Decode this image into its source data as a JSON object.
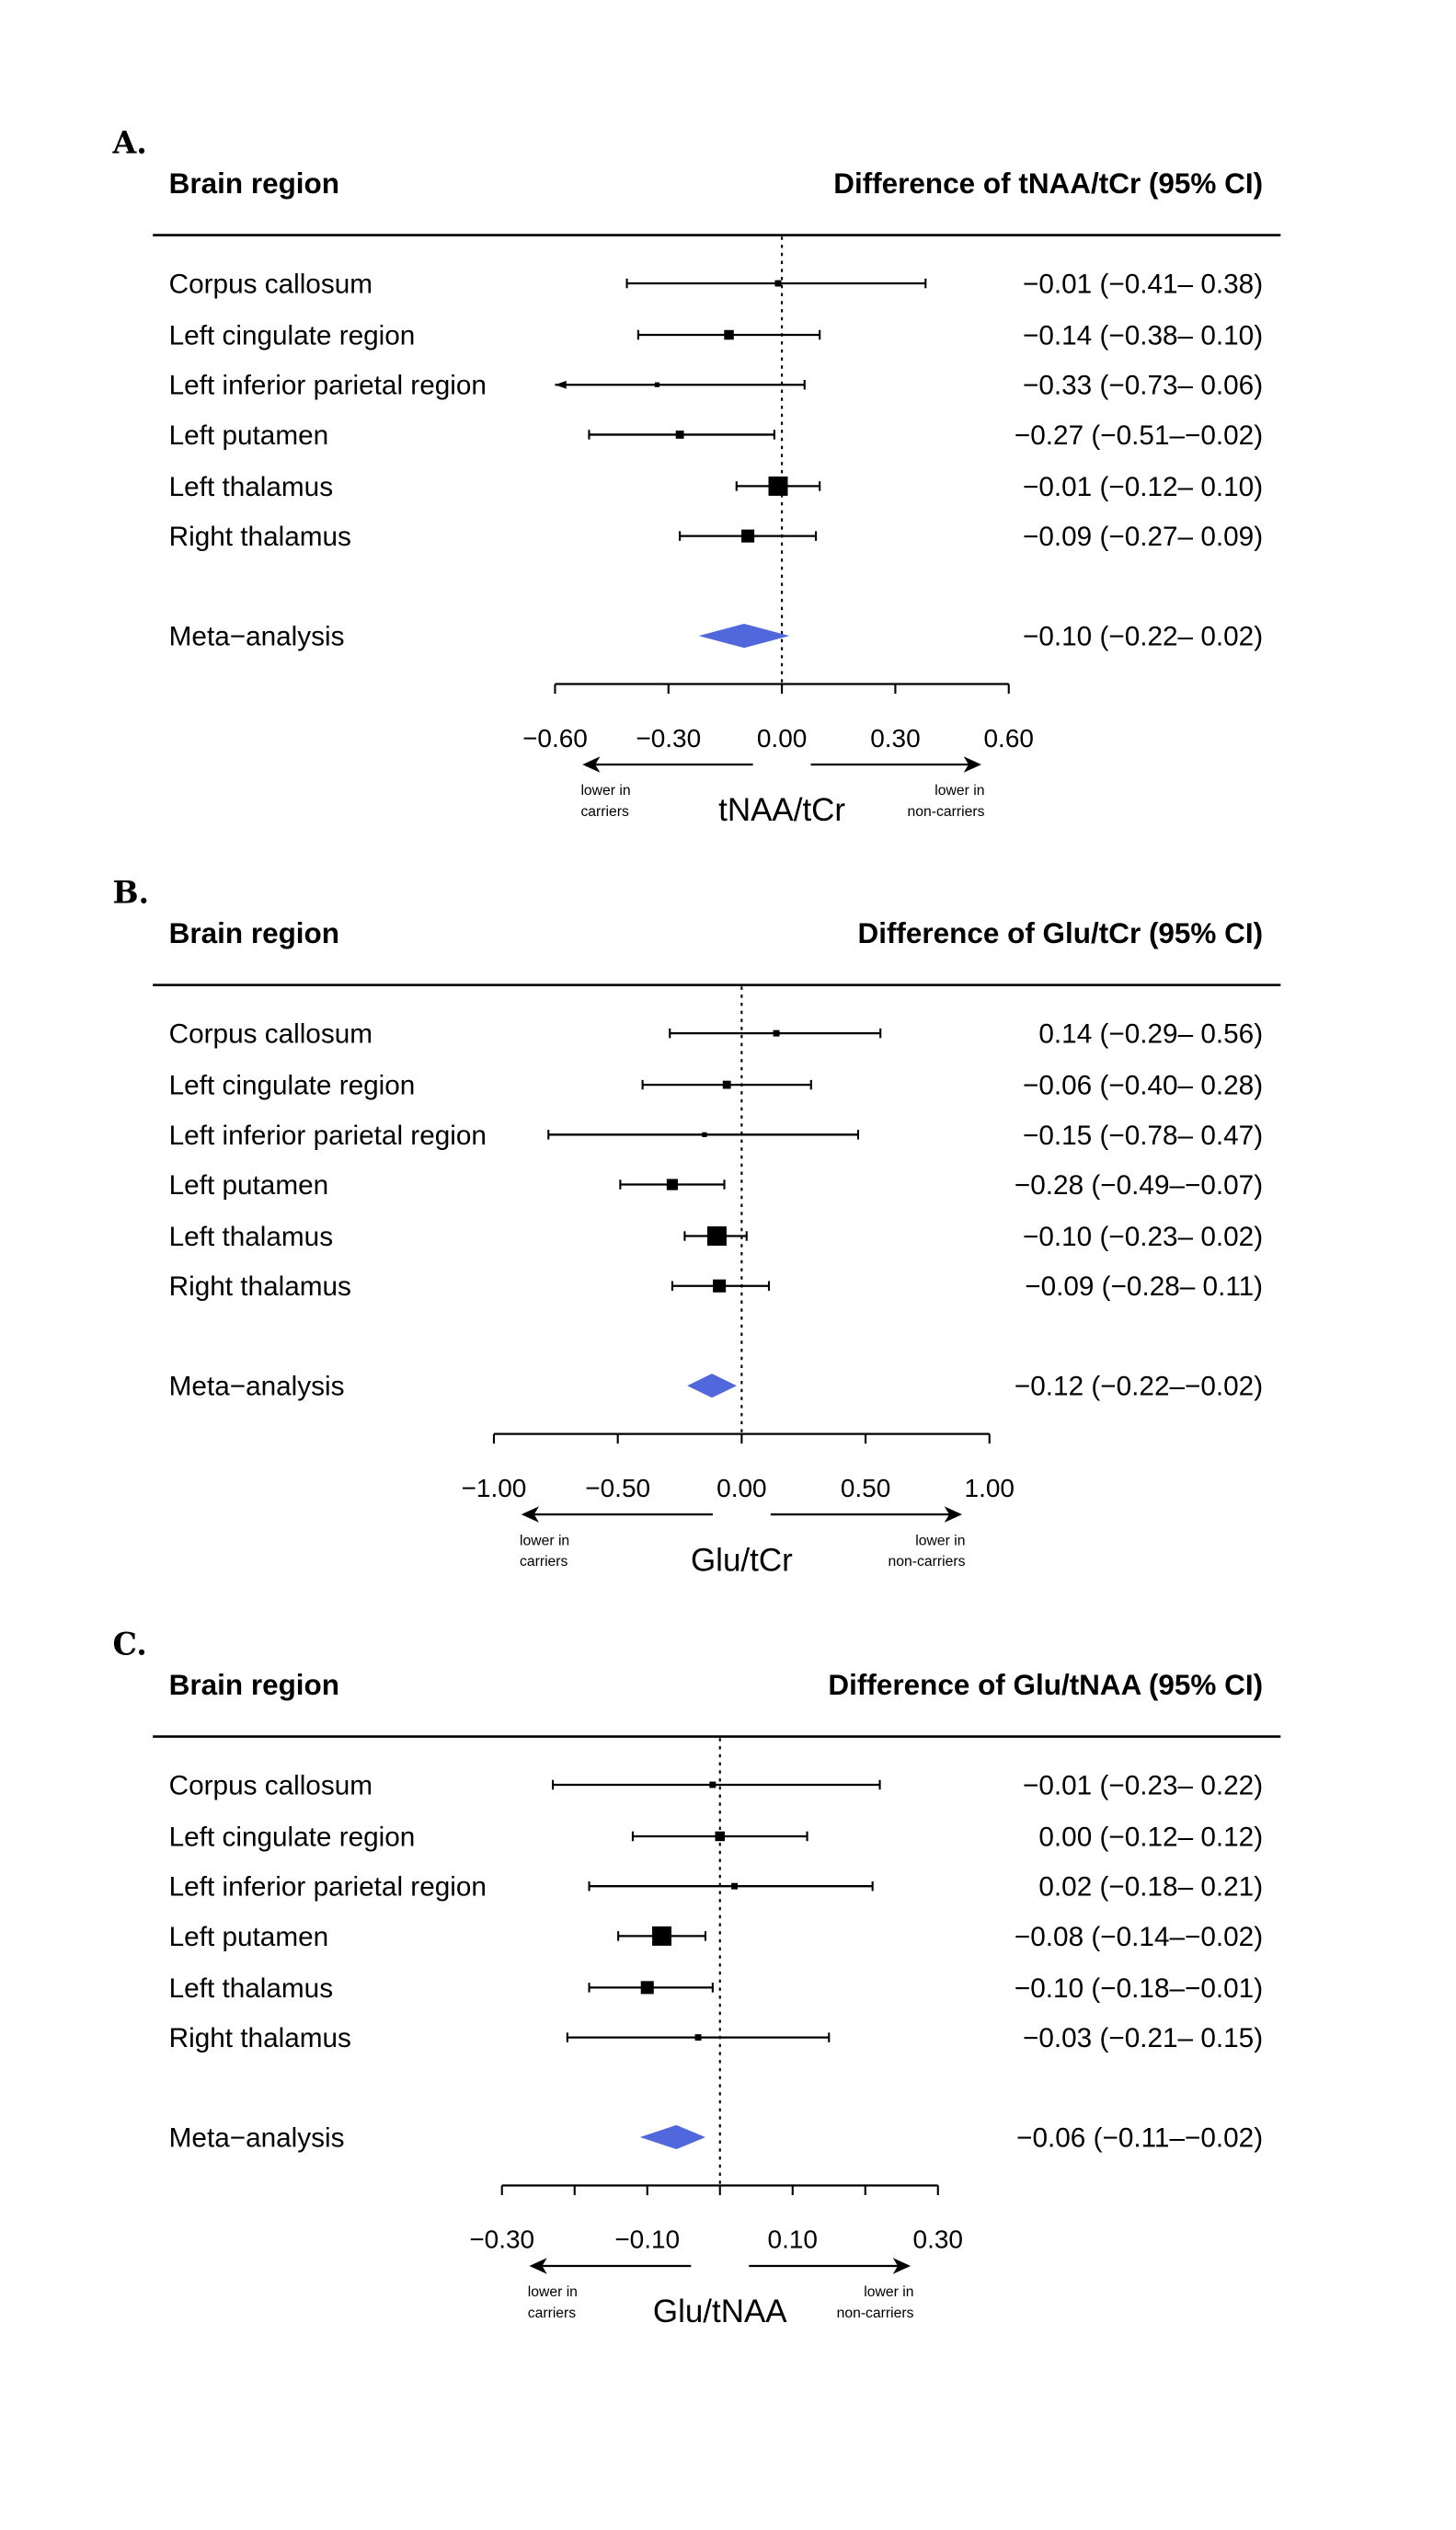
{
  "chart_data": [
    {
      "type": "forest",
      "panel_label": "A.",
      "left_header": "Brain region",
      "right_header": "Difference of tNAA/tCr (95% CI)",
      "xlabel": "tNAA/tCr",
      "xlim": [
        -0.6,
        0.6
      ],
      "ticks": [
        -0.6,
        -0.3,
        0,
        0.3,
        0.6
      ],
      "tick_labels": [
        "−0.60",
        "−0.30",
        "0.00",
        "0.30",
        "0.60"
      ],
      "left_note": [
        "lower in",
        "carriers"
      ],
      "right_note": [
        "lower in",
        "non-carriers"
      ],
      "rows": [
        {
          "region": "Corpus callosum",
          "est": -0.01,
          "lo": -0.41,
          "hi": 0.38,
          "weight": 0.33,
          "text": "−0.01 (−0.41– 0.38)"
        },
        {
          "region": "Left cingulate region",
          "est": -0.14,
          "lo": -0.38,
          "hi": 0.1,
          "weight": 0.5,
          "text": "−0.14 (−0.38– 0.10)"
        },
        {
          "region": "Left inferior parietal region",
          "est": -0.33,
          "lo": -0.73,
          "hi": 0.06,
          "weight": 0.25,
          "text": "−0.33 (−0.73– 0.06)"
        },
        {
          "region": "Left putamen",
          "est": -0.27,
          "lo": -0.51,
          "hi": -0.02,
          "weight": 0.42,
          "text": "−0.27 (−0.51–−0.02)"
        },
        {
          "region": "Left thalamus",
          "est": -0.01,
          "lo": -0.12,
          "hi": 0.1,
          "weight": 1.0,
          "text": "−0.01 (−0.12– 0.10)"
        },
        {
          "region": "Right thalamus",
          "est": -0.09,
          "lo": -0.27,
          "hi": 0.09,
          "weight": 0.67,
          "text": "−0.09 (−0.27– 0.09)"
        }
      ],
      "meta": {
        "region": "Meta−analysis",
        "est": -0.1,
        "lo": -0.22,
        "hi": 0.02,
        "text": "−0.10 (−0.22– 0.02)"
      }
    },
    {
      "type": "forest",
      "panel_label": "B.",
      "left_header": "Brain region",
      "right_header": "Difference of Glu/tCr (95% CI)",
      "xlabel": "Glu/tCr",
      "xlim": [
        -1,
        1
      ],
      "ticks": [
        -1,
        -0.5,
        0,
        0.5,
        1
      ],
      "tick_labels": [
        "−1.00",
        "−0.50",
        "0.00",
        "0.50",
        "1.00"
      ],
      "left_note": [
        "lower in",
        "carriers"
      ],
      "right_note": [
        "lower in",
        "non-carriers"
      ],
      "rows": [
        {
          "region": "Corpus callosum",
          "est": 0.14,
          "lo": -0.29,
          "hi": 0.56,
          "weight": 0.33,
          "text": "0.14 (−0.29– 0.56)"
        },
        {
          "region": "Left cingulate region",
          "est": -0.06,
          "lo": -0.4,
          "hi": 0.28,
          "weight": 0.42,
          "text": "−0.06 (−0.40– 0.28)"
        },
        {
          "region": "Left inferior parietal region",
          "est": -0.15,
          "lo": -0.78,
          "hi": 0.47,
          "weight": 0.25,
          "text": "−0.15 (−0.78– 0.47)"
        },
        {
          "region": "Left putamen",
          "est": -0.28,
          "lo": -0.49,
          "hi": -0.07,
          "weight": 0.58,
          "text": "−0.28 (−0.49–−0.07)"
        },
        {
          "region": "Left thalamus",
          "est": -0.1,
          "lo": -0.23,
          "hi": 0.02,
          "weight": 1.0,
          "text": "−0.10 (−0.23– 0.02)"
        },
        {
          "region": "Right thalamus",
          "est": -0.09,
          "lo": -0.28,
          "hi": 0.11,
          "weight": 0.67,
          "text": "−0.09 (−0.28– 0.11)"
        }
      ],
      "meta": {
        "region": "Meta−analysis",
        "est": -0.12,
        "lo": -0.22,
        "hi": -0.02,
        "text": "−0.12 (−0.22–−0.02)"
      }
    },
    {
      "type": "forest",
      "panel_label": "C.",
      "left_header": "Brain region",
      "right_header": "Difference of Glu/tNAA (95% CI)",
      "xlabel": "Glu/tNAA",
      "xlim": [
        -0.3,
        0.3
      ],
      "ticks": [
        -0.3,
        -0.2,
        -0.1,
        0,
        0.1,
        0.2,
        0.3
      ],
      "tick_labels": [
        "−0.30",
        "",
        "−0.10",
        "",
        "0.10",
        "",
        "0.30"
      ],
      "left_note": [
        "lower in",
        "carriers"
      ],
      "right_note": [
        "lower in",
        "non-carriers"
      ],
      "rows": [
        {
          "region": "Corpus callosum",
          "est": -0.01,
          "lo": -0.23,
          "hi": 0.22,
          "weight": 0.33,
          "text": "−0.01 (−0.23– 0.22)"
        },
        {
          "region": "Left cingulate region",
          "est": 0.0,
          "lo": -0.12,
          "hi": 0.12,
          "weight": 0.5,
          "text": "0.00 (−0.12– 0.12)"
        },
        {
          "region": "Left inferior parietal region",
          "est": 0.02,
          "lo": -0.18,
          "hi": 0.21,
          "weight": 0.33,
          "text": "0.02 (−0.18– 0.21)"
        },
        {
          "region": "Left putamen",
          "est": -0.08,
          "lo": -0.14,
          "hi": -0.02,
          "weight": 1.0,
          "text": "−0.08 (−0.14–−0.02)"
        },
        {
          "region": "Left thalamus",
          "est": -0.1,
          "lo": -0.18,
          "hi": -0.01,
          "weight": 0.67,
          "text": "−0.10 (−0.18–−0.01)"
        },
        {
          "region": "Right thalamus",
          "est": -0.03,
          "lo": -0.21,
          "hi": 0.15,
          "weight": 0.33,
          "text": "−0.03 (−0.21– 0.15)"
        }
      ],
      "meta": {
        "region": "Meta−analysis",
        "est": -0.06,
        "lo": -0.11,
        "hi": -0.02,
        "text": "−0.06 (−0.11–−0.02)"
      }
    }
  ],
  "colors": {
    "diamond": "#5068DC",
    "ink": "#000000"
  }
}
